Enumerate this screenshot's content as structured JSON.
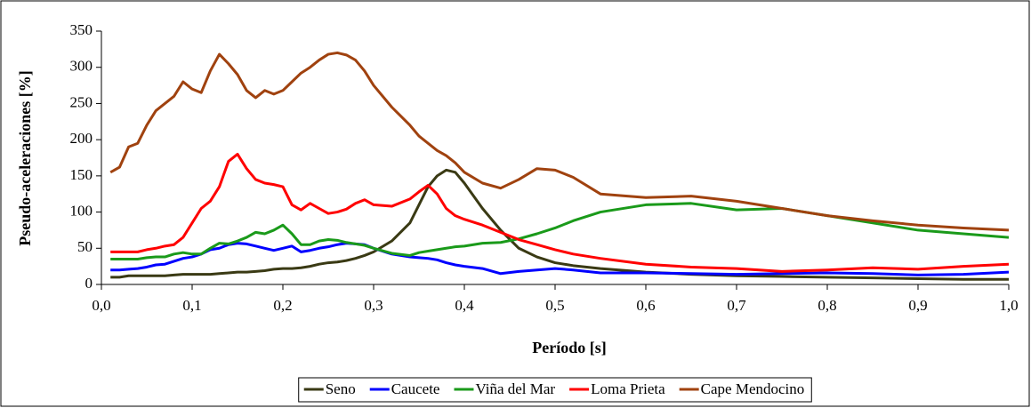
{
  "chart_data": {
    "type": "line",
    "x_label": "Período [s]",
    "y_label": "Pseudo-aceleraciones [%]",
    "x": [
      0.01,
      0.02,
      0.03,
      0.04,
      0.05,
      0.06,
      0.07,
      0.08,
      0.09,
      0.1,
      0.11,
      0.12,
      0.13,
      0.14,
      0.15,
      0.16,
      0.17,
      0.18,
      0.19,
      0.2,
      0.21,
      0.22,
      0.23,
      0.24,
      0.25,
      0.26,
      0.27,
      0.28,
      0.29,
      0.3,
      0.32,
      0.34,
      0.35,
      0.36,
      0.37,
      0.38,
      0.39,
      0.4,
      0.42,
      0.44,
      0.46,
      0.48,
      0.5,
      0.52,
      0.55,
      0.6,
      0.65,
      0.7,
      0.75,
      0.8,
      0.85,
      0.9,
      0.95,
      1.0
    ],
    "series": [
      {
        "name": "Seno",
        "color": "#3a3a14",
        "values": [
          10,
          10,
          12,
          12,
          12,
          12,
          12,
          13,
          14,
          14,
          14,
          14,
          15,
          16,
          17,
          17,
          18,
          19,
          21,
          22,
          22,
          23,
          25,
          28,
          30,
          31,
          33,
          36,
          40,
          45,
          60,
          85,
          110,
          135,
          150,
          158,
          155,
          140,
          105,
          75,
          50,
          38,
          30,
          26,
          22,
          17,
          14,
          12,
          11,
          10,
          9,
          8,
          7,
          7
        ]
      },
      {
        "name": "Caucete",
        "color": "#0000ff",
        "values": [
          20,
          20,
          21,
          22,
          24,
          27,
          28,
          32,
          36,
          38,
          42,
          48,
          50,
          55,
          57,
          56,
          53,
          50,
          47,
          50,
          53,
          45,
          47,
          50,
          52,
          55,
          57,
          56,
          55,
          50,
          42,
          38,
          37,
          36,
          34,
          30,
          27,
          25,
          22,
          15,
          18,
          20,
          22,
          20,
          16,
          16,
          15,
          14,
          15,
          16,
          15,
          13,
          14,
          17
        ]
      },
      {
        "name": "Viña del Mar",
        "color": "#1a9a1a",
        "values": [
          35,
          35,
          35,
          35,
          37,
          38,
          38,
          42,
          44,
          42,
          42,
          50,
          57,
          56,
          60,
          65,
          72,
          70,
          75,
          82,
          70,
          55,
          55,
          60,
          62,
          61,
          58,
          56,
          54,
          50,
          43,
          40,
          44,
          46,
          48,
          50,
          52,
          53,
          57,
          58,
          63,
          70,
          78,
          88,
          100,
          110,
          112,
          103,
          105,
          95,
          85,
          75,
          70,
          65
        ]
      },
      {
        "name": "Loma Prieta",
        "color": "#ff0000",
        "values": [
          45,
          45,
          45,
          45,
          48,
          50,
          53,
          55,
          65,
          85,
          105,
          115,
          135,
          170,
          180,
          160,
          145,
          140,
          138,
          135,
          110,
          103,
          112,
          105,
          98,
          100,
          104,
          112,
          117,
          110,
          108,
          118,
          128,
          137,
          125,
          105,
          95,
          90,
          82,
          72,
          62,
          55,
          48,
          42,
          36,
          28,
          24,
          22,
          18,
          20,
          23,
          21,
          25,
          28
        ]
      },
      {
        "name": "Cape Mendocino",
        "color": "#a0420f",
        "values": [
          155,
          162,
          190,
          195,
          220,
          240,
          250,
          260,
          280,
          270,
          265,
          295,
          318,
          305,
          290,
          268,
          258,
          268,
          263,
          268,
          280,
          292,
          300,
          310,
          318,
          320,
          317,
          310,
          295,
          275,
          245,
          220,
          205,
          195,
          185,
          178,
          168,
          155,
          140,
          133,
          145,
          160,
          158,
          148,
          125,
          120,
          122,
          115,
          105,
          95,
          88,
          82,
          78,
          75
        ]
      }
    ],
    "xlim": [
      0,
      1
    ],
    "xticks": [
      {
        "value": 0,
        "label": "0,0"
      },
      {
        "value": 0.1,
        "label": "0,1"
      },
      {
        "value": 0.2,
        "label": "0,2"
      },
      {
        "value": 0.3,
        "label": "0,3"
      },
      {
        "value": 0.4,
        "label": "0,4"
      },
      {
        "value": 0.5,
        "label": "0,5"
      },
      {
        "value": 0.6,
        "label": "0,6"
      },
      {
        "value": 0.7,
        "label": "0,7"
      },
      {
        "value": 0.8,
        "label": "0,8"
      },
      {
        "value": 0.9,
        "label": "0,9"
      },
      {
        "value": 1,
        "label": "1,0"
      }
    ],
    "ylim": [
      0,
      350
    ],
    "yticks": [
      0,
      50,
      100,
      150,
      200,
      250,
      300,
      350
    ],
    "legend": "bottom"
  }
}
